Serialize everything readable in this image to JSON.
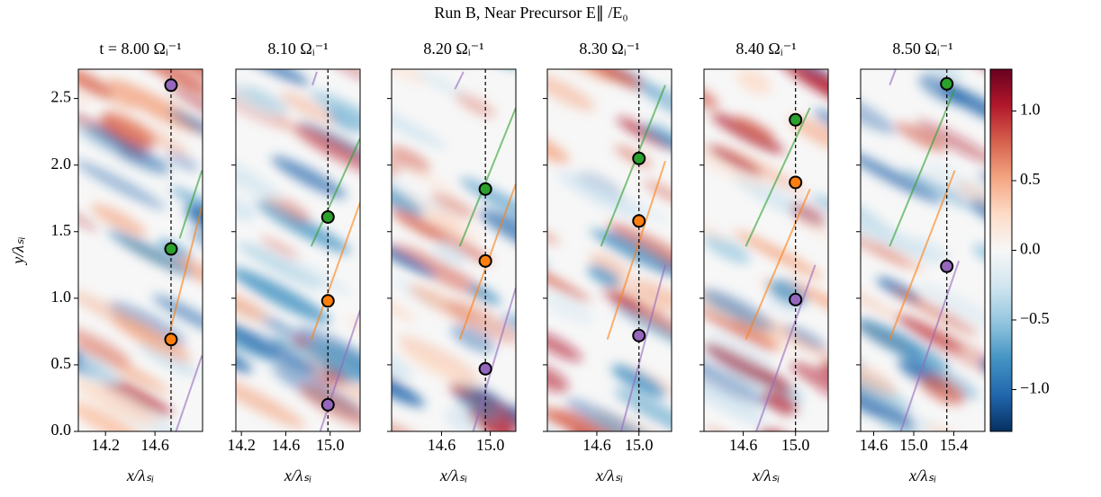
{
  "title": "Run B, Near Precursor E∥ /E₀",
  "chart_data": [
    {
      "type": "heatmap",
      "title": "t = 8.00 Ωᵢ⁻¹",
      "xlabel": "x/λₛᵢ",
      "ylabel": "y/λₛᵢ",
      "xlim": [
        13.98,
        14.985
      ],
      "ylim": [
        0,
        2.72
      ],
      "xticks": [
        14.2,
        14.6
      ],
      "yticks": [
        {
          "value": 0,
          "label": "0.0"
        },
        0.5,
        {
          "value": 1,
          "label": "1.0"
        },
        1.5,
        {
          "value": 2,
          "label": "2.0"
        },
        2.5
      ],
      "probe_x": 14.73,
      "markers": [
        {
          "color": "#9467bd",
          "y": 2.6
        },
        {
          "color": "#2ca02c",
          "y": 1.37
        },
        {
          "color": "#ff7f0e",
          "y": 0.69
        }
      ],
      "trajectories": [
        {
          "color": "#2ca02c",
          "x": [
            14.8,
            14.98
          ],
          "y": [
            1.45,
            1.96
          ]
        },
        {
          "color": "#ff7f0e",
          "x": [
            14.71,
            14.98
          ],
          "y": [
            0.71,
            1.69
          ]
        },
        {
          "color": "#9467bd",
          "x": [
            14.77,
            14.98
          ],
          "y": [
            0,
            0.57
          ]
        }
      ]
    },
    {
      "type": "heatmap",
      "title": "8.10 Ωᵢ⁻¹",
      "xlabel": "x/λₛᵢ",
      "xlim": [
        14.15,
        15.27
      ],
      "ylim": [
        0,
        2.72
      ],
      "xticks": [
        14.2,
        14.6,
        {
          "value": 15,
          "label": "15.0"
        }
      ],
      "yticks": [
        0,
        0.5,
        1,
        1.5,
        2,
        2.5
      ],
      "probe_x": 14.98,
      "markers": [
        {
          "color": "#2ca02c",
          "y": 1.61
        },
        {
          "color": "#ff7f0e",
          "y": 0.98
        },
        {
          "color": "#9467bd",
          "y": 0.2
        }
      ],
      "trajectories": [
        {
          "color": "#2ca02c",
          "x": [
            14.83,
            15.27
          ],
          "y": [
            1.39,
            2.2
          ]
        },
        {
          "color": "#ff7f0e",
          "x": [
            14.83,
            15.27
          ],
          "y": [
            0.69,
            1.72
          ]
        },
        {
          "color": "#9467bd",
          "x": [
            14.84,
            14.88
          ],
          "y": [
            2.6,
            2.7
          ]
        },
        {
          "color": "#9467bd",
          "x": [
            14.91,
            15.27
          ],
          "y": [
            0,
            0.91
          ]
        }
      ]
    },
    {
      "type": "heatmap",
      "title": "8.20 Ωᵢ⁻¹",
      "xlabel": "x/λₛᵢ",
      "xlim": [
        14.19,
        15.21
      ],
      "ylim": [
        0,
        2.72
      ],
      "xticks": [
        14.6,
        {
          "value": 15,
          "label": "15.0"
        }
      ],
      "yticks": [
        0,
        0.5,
        1,
        1.5,
        2,
        2.5
      ],
      "probe_x": 14.96,
      "markers": [
        {
          "color": "#2ca02c",
          "y": 1.82
        },
        {
          "color": "#ff7f0e",
          "y": 1.28
        },
        {
          "color": "#9467bd",
          "y": 0.47
        }
      ],
      "trajectories": [
        {
          "color": "#2ca02c",
          "x": [
            14.75,
            15.21
          ],
          "y": [
            1.39,
            2.43
          ]
        },
        {
          "color": "#ff7f0e",
          "x": [
            14.75,
            15.21
          ],
          "y": [
            0.69,
            1.86
          ]
        },
        {
          "color": "#9467bd",
          "x": [
            14.71,
            14.78
          ],
          "y": [
            2.57,
            2.7
          ]
        },
        {
          "color": "#9467bd",
          "x": [
            14.86,
            15.21
          ],
          "y": [
            0,
            1.08
          ]
        }
      ]
    },
    {
      "type": "heatmap",
      "title": "8.30 Ωᵢ⁻¹",
      "xlabel": "x/λₛᵢ",
      "xlim": [
        14.13,
        15.31
      ],
      "ylim": [
        0,
        2.72
      ],
      "xticks": [
        14.6,
        {
          "value": 15,
          "label": "15.0"
        }
      ],
      "yticks": [
        0,
        0.5,
        1,
        1.5,
        2,
        2.5
      ],
      "probe_x": 15.0,
      "markers": [
        {
          "color": "#2ca02c",
          "y": 2.05
        },
        {
          "color": "#ff7f0e",
          "y": 1.58
        },
        {
          "color": "#9467bd",
          "y": 0.72
        }
      ],
      "trajectories": [
        {
          "color": "#2ca02c",
          "x": [
            14.64,
            15.25
          ],
          "y": [
            1.39,
            2.6
          ]
        },
        {
          "color": "#ff7f0e",
          "x": [
            14.7,
            15.25
          ],
          "y": [
            0.69,
            2.03
          ]
        },
        {
          "color": "#9467bd",
          "x": [
            14.83,
            15.25
          ],
          "y": [
            0,
            1.25
          ]
        }
      ]
    },
    {
      "type": "heatmap",
      "title": "8.40 Ωᵢ⁻¹",
      "xlabel": "x/λₛᵢ",
      "xlim": [
        14.3,
        15.25
      ],
      "ylim": [
        0,
        2.72
      ],
      "xticks": [
        14.6,
        {
          "value": 15,
          "label": "15.0"
        }
      ],
      "yticks": [
        0,
        0.5,
        1,
        1.5,
        2,
        2.5
      ],
      "probe_x": 15.0,
      "markers": [
        {
          "color": "#2ca02c",
          "y": 2.34
        },
        {
          "color": "#ff7f0e",
          "y": 1.87
        },
        {
          "color": "#9467bd",
          "y": 0.99
        }
      ],
      "trajectories": [
        {
          "color": "#2ca02c",
          "x": [
            14.62,
            15.11
          ],
          "y": [
            1.39,
            2.43
          ]
        },
        {
          "color": "#ff7f0e",
          "x": [
            14.62,
            15.11
          ],
          "y": [
            0.69,
            1.82
          ]
        },
        {
          "color": "#9467bd",
          "x": [
            14.7,
            15.15
          ],
          "y": [
            0,
            1.25
          ]
        }
      ]
    },
    {
      "type": "heatmap",
      "title": "8.50 Ωᵢ⁻¹",
      "xlabel": "x/λₛᵢ",
      "xlim": [
        14.47,
        15.71
      ],
      "ylim": [
        0,
        2.72
      ],
      "xticks": [
        14.6,
        {
          "value": 15,
          "label": "15.0"
        },
        15.4
      ],
      "yticks": [
        0,
        0.5,
        1,
        1.5,
        2,
        2.5
      ],
      "probe_x": 15.33,
      "markers": [
        {
          "color": "#2ca02c",
          "y": 2.61
        },
        {
          "color": "#9467bd",
          "y": 1.24
        }
      ],
      "trajectories": [
        {
          "color": "#2ca02c",
          "x": [
            14.76,
            15.41
          ],
          "y": [
            1.39,
            2.57
          ]
        },
        {
          "color": "#ff7f0e",
          "x": [
            14.76,
            15.41
          ],
          "y": [
            0.69,
            1.96
          ]
        },
        {
          "color": "#9467bd",
          "x": [
            14.87,
            15.45
          ],
          "y": [
            0,
            1.28
          ]
        },
        {
          "color": "#9467bd",
          "x": [
            14.76,
            14.82
          ],
          "y": [
            2.6,
            2.72
          ]
        }
      ]
    }
  ],
  "colorbar": {
    "clim": [
      -1.3,
      1.3
    ],
    "ticks": [
      {
        "value": -1,
        "label": "−1.0"
      },
      {
        "value": -0.5,
        "label": "−0.5"
      },
      {
        "value": 0,
        "label": "0.0"
      },
      0.5,
      {
        "value": 1,
        "label": "1.0"
      }
    ],
    "colors": [
      "#053061",
      "#2166ac",
      "#4393c3",
      "#92c5de",
      "#d1e5f0",
      "#f7f7f7",
      "#fddbc7",
      "#f4a582",
      "#d6604d",
      "#b2182b",
      "#67001f"
    ]
  }
}
